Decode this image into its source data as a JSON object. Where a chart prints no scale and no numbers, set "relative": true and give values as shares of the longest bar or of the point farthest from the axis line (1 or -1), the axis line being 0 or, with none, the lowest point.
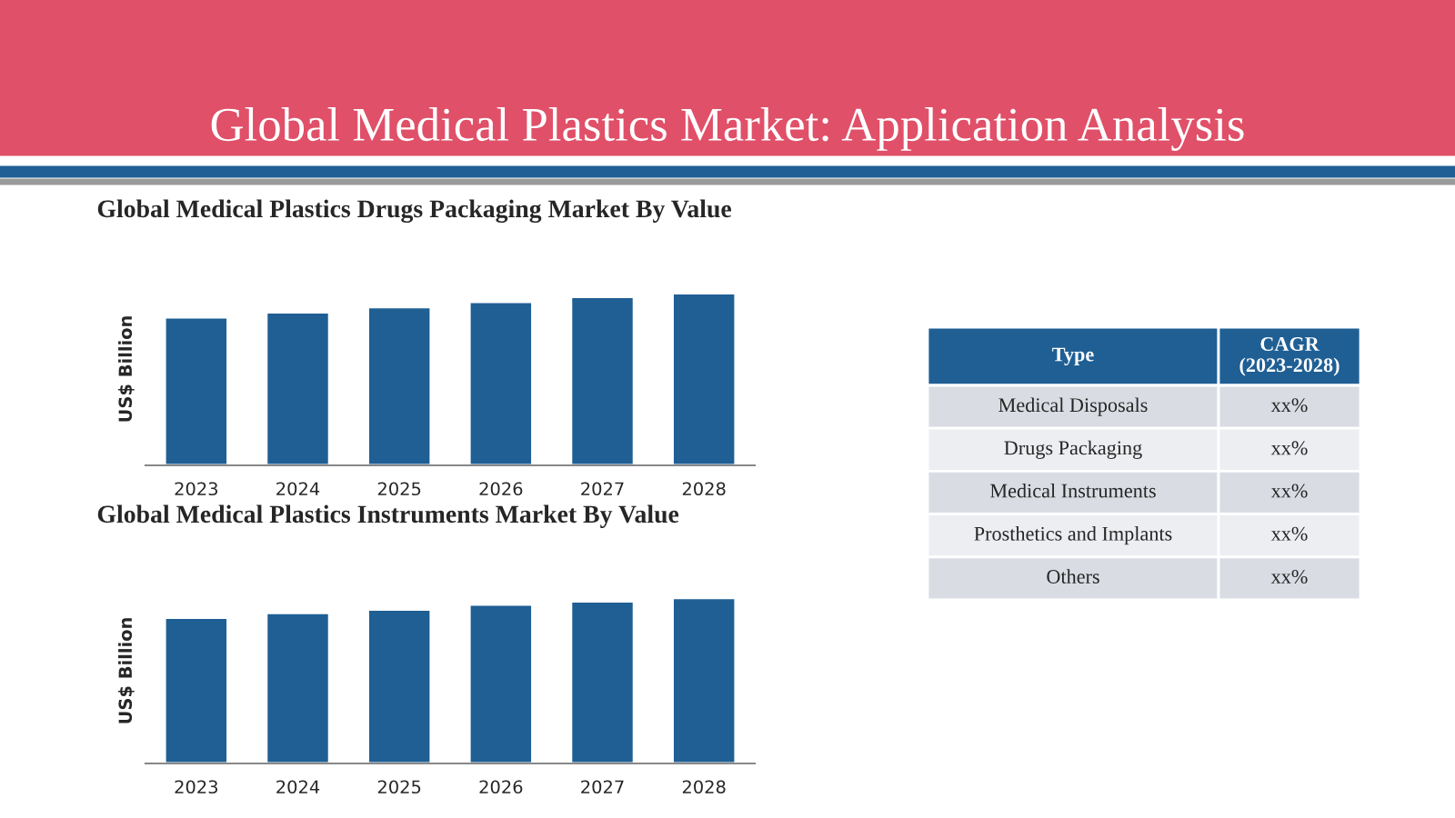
{
  "chart_data": [
    {
      "type": "other",
      "title": "Global Medical Plastics Market: Application Analysis"
    },
    {
      "type": "bar",
      "title": "Global Medical Plastics Drugs Packaging Market By Value",
      "ylabel": "US$ Billion",
      "relative": true,
      "categories": [
        "2023",
        "2024",
        "2025",
        "2026",
        "2027",
        "2028"
      ],
      "values": [
        0.86,
        0.89,
        0.92,
        0.95,
        0.98,
        1.0
      ],
      "color": "#1f5f94"
    },
    {
      "type": "bar",
      "title": "Global Medical Plastics Instruments Market By Value",
      "ylabel": "US$ Billion",
      "relative": true,
      "categories": [
        "2023",
        "2024",
        "2025",
        "2026",
        "2027",
        "2028"
      ],
      "values": [
        0.88,
        0.91,
        0.93,
        0.96,
        0.98,
        1.0
      ],
      "color": "#1f5f94"
    },
    {
      "type": "other",
      "categories": [
        "Type",
        "CAGR\n(2023-2028)"
      ],
      "y_categories": [
        "Medical Disposals",
        "Drugs Packaging",
        "Medical Instruments",
        "Prosthetics and Implants",
        "Others"
      ],
      "cell_labels": [
        [
          "xx%"
        ],
        [
          "xx%"
        ],
        [
          "xx%"
        ],
        [
          "xx%"
        ],
        [
          "xx%"
        ]
      ]
    }
  ]
}
